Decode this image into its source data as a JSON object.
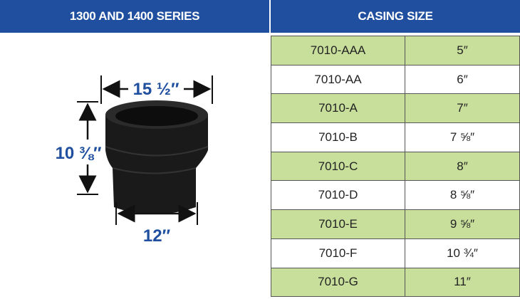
{
  "header": {
    "left": "1300 AND 1400 SERIES",
    "right": "CASING SIZE"
  },
  "dimensions": {
    "top": "15 ½″",
    "height": "10 ⅜″",
    "bottom": "12″"
  },
  "table": {
    "rows": [
      [
        "7010-AAA",
        "5″"
      ],
      [
        "7010-AA",
        "6″"
      ],
      [
        "7010-A",
        "7″"
      ],
      [
        "7010-B",
        "7 ⅝″"
      ],
      [
        "7010-C",
        "8″"
      ],
      [
        "7010-D",
        "8 ⅝″"
      ],
      [
        "7010-E",
        "9 ⅝″"
      ],
      [
        "7010-F",
        "10 ¾″"
      ],
      [
        "7010-G",
        "11″"
      ]
    ]
  }
}
